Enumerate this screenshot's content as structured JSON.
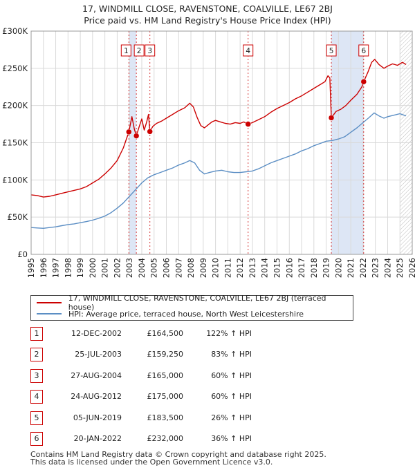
{
  "title_line1": "17, WINDMILL CLOSE, RAVENSTONE, COALVILLE, LE67 2BJ",
  "title_line2": "Price paid vs. HM Land Registry's House Price Index (HPI)",
  "colors": {
    "property": "#cc0000",
    "hpi": "#5b8ec4",
    "shade": "#dde6f5",
    "grid": "#d9d9d9"
  },
  "chart_data": {
    "type": "line",
    "xlim": [
      1995,
      2026
    ],
    "ylim": [
      0,
      300000
    ],
    "y_ticks": [
      0,
      50000,
      100000,
      150000,
      200000,
      250000,
      300000
    ],
    "y_tick_labels": [
      "£0",
      "£50K",
      "£100K",
      "£150K",
      "£200K",
      "£250K",
      "£300K"
    ],
    "x_ticks": [
      "1995",
      "1996",
      "1997",
      "1998",
      "1999",
      "2000",
      "2001",
      "2002",
      "2003",
      "2004",
      "2005",
      "2006",
      "2007",
      "2008",
      "2009",
      "2010",
      "2011",
      "2012",
      "2013",
      "2014",
      "2015",
      "2016",
      "2017",
      "2018",
      "2019",
      "2020",
      "2021",
      "2022",
      "2023",
      "2024",
      "2025",
      "2026"
    ],
    "grid": true,
    "series": [
      {
        "name": "17, WINDMILL CLOSE, RAVENSTONE, COALVILLE, LE67 2BJ (terraced house)",
        "color": "#cc0000",
        "points": [
          [
            1995.0,
            80000
          ],
          [
            1995.5,
            79000
          ],
          [
            1996.0,
            77000
          ],
          [
            1996.5,
            78000
          ],
          [
            1997.0,
            80000
          ],
          [
            1997.5,
            82000
          ],
          [
            1998.0,
            84000
          ],
          [
            1998.5,
            86000
          ],
          [
            1999.0,
            88000
          ],
          [
            1999.5,
            91000
          ],
          [
            2000.0,
            96000
          ],
          [
            2000.5,
            101000
          ],
          [
            2001.0,
            108000
          ],
          [
            2001.5,
            116000
          ],
          [
            2002.0,
            126000
          ],
          [
            2002.5,
            143000
          ],
          [
            2002.95,
            164500
          ],
          [
            2003.2,
            185000
          ],
          [
            2003.4,
            168000
          ],
          [
            2003.56,
            159250
          ],
          [
            2003.8,
            172000
          ],
          [
            2004.0,
            182000
          ],
          [
            2004.2,
            167000
          ],
          [
            2004.4,
            178000
          ],
          [
            2004.55,
            188000
          ],
          [
            2004.66,
            165000
          ],
          [
            2004.9,
            172000
          ],
          [
            2005.2,
            176000
          ],
          [
            2005.6,
            179000
          ],
          [
            2006.0,
            183000
          ],
          [
            2006.5,
            188000
          ],
          [
            2007.0,
            193000
          ],
          [
            2007.5,
            197000
          ],
          [
            2007.9,
            203000
          ],
          [
            2008.2,
            198000
          ],
          [
            2008.5,
            184000
          ],
          [
            2008.8,
            173000
          ],
          [
            2009.1,
            170000
          ],
          [
            2009.4,
            174000
          ],
          [
            2009.7,
            178000
          ],
          [
            2010.0,
            180000
          ],
          [
            2010.4,
            178000
          ],
          [
            2010.8,
            176000
          ],
          [
            2011.2,
            175000
          ],
          [
            2011.6,
            177000
          ],
          [
            2012.0,
            176000
          ],
          [
            2012.3,
            178000
          ],
          [
            2012.65,
            175000
          ],
          [
            2013.0,
            177000
          ],
          [
            2013.5,
            181000
          ],
          [
            2014.0,
            185000
          ],
          [
            2014.5,
            191000
          ],
          [
            2015.0,
            196000
          ],
          [
            2015.5,
            200000
          ],
          [
            2016.0,
            204000
          ],
          [
            2016.5,
            209000
          ],
          [
            2017.0,
            213000
          ],
          [
            2017.5,
            218000
          ],
          [
            2018.0,
            223000
          ],
          [
            2018.5,
            228000
          ],
          [
            2018.9,
            232000
          ],
          [
            2019.15,
            240000
          ],
          [
            2019.3,
            237000
          ],
          [
            2019.42,
            183500
          ],
          [
            2019.8,
            192000
          ],
          [
            2020.2,
            195000
          ],
          [
            2020.6,
            200000
          ],
          [
            2021.0,
            207000
          ],
          [
            2021.5,
            215000
          ],
          [
            2021.9,
            225000
          ],
          [
            2022.05,
            232000
          ],
          [
            2022.4,
            245000
          ],
          [
            2022.7,
            258000
          ],
          [
            2022.95,
            262000
          ],
          [
            2023.3,
            255000
          ],
          [
            2023.7,
            250000
          ],
          [
            2024.0,
            253000
          ],
          [
            2024.4,
            256000
          ],
          [
            2024.8,
            254000
          ],
          [
            2025.2,
            258000
          ],
          [
            2025.5,
            255000
          ]
        ]
      },
      {
        "name": "HPI: Average price, terraced house, North West Leicestershire",
        "color": "#5b8ec4",
        "points": [
          [
            1995.0,
            36000
          ],
          [
            1995.5,
            35500
          ],
          [
            1996.0,
            35000
          ],
          [
            1996.5,
            36000
          ],
          [
            1997.0,
            37000
          ],
          [
            1997.5,
            38500
          ],
          [
            1998.0,
            40000
          ],
          [
            1998.5,
            41000
          ],
          [
            1999.0,
            42500
          ],
          [
            1999.5,
            44000
          ],
          [
            2000.0,
            46000
          ],
          [
            2000.5,
            48500
          ],
          [
            2001.0,
            51500
          ],
          [
            2001.5,
            56000
          ],
          [
            2002.0,
            62000
          ],
          [
            2002.5,
            69000
          ],
          [
            2003.0,
            78000
          ],
          [
            2003.5,
            87000
          ],
          [
            2004.0,
            96000
          ],
          [
            2004.5,
            103000
          ],
          [
            2005.0,
            107000
          ],
          [
            2005.5,
            110000
          ],
          [
            2006.0,
            113000
          ],
          [
            2006.5,
            116000
          ],
          [
            2007.0,
            120000
          ],
          [
            2007.5,
            123000
          ],
          [
            2007.9,
            126000
          ],
          [
            2008.3,
            123000
          ],
          [
            2008.7,
            113000
          ],
          [
            2009.1,
            108000
          ],
          [
            2009.5,
            110000
          ],
          [
            2010.0,
            112000
          ],
          [
            2010.5,
            113000
          ],
          [
            2011.0,
            111000
          ],
          [
            2011.5,
            110000
          ],
          [
            2012.0,
            110000
          ],
          [
            2012.5,
            111000
          ],
          [
            2013.0,
            112000
          ],
          [
            2013.5,
            115000
          ],
          [
            2014.0,
            119000
          ],
          [
            2014.5,
            123000
          ],
          [
            2015.0,
            126000
          ],
          [
            2015.5,
            129000
          ],
          [
            2016.0,
            132000
          ],
          [
            2016.5,
            135000
          ],
          [
            2017.0,
            139000
          ],
          [
            2017.5,
            142000
          ],
          [
            2018.0,
            146000
          ],
          [
            2018.5,
            149000
          ],
          [
            2019.0,
            152000
          ],
          [
            2019.5,
            153000
          ],
          [
            2020.0,
            155000
          ],
          [
            2020.5,
            158000
          ],
          [
            2021.0,
            164000
          ],
          [
            2021.5,
            170000
          ],
          [
            2022.0,
            177000
          ],
          [
            2022.5,
            184000
          ],
          [
            2022.9,
            190000
          ],
          [
            2023.3,
            186000
          ],
          [
            2023.7,
            183000
          ],
          [
            2024.0,
            185000
          ],
          [
            2024.5,
            187000
          ],
          [
            2025.0,
            189000
          ],
          [
            2025.5,
            186000
          ]
        ]
      }
    ],
    "sales": [
      {
        "label": "1",
        "x": 2002.95,
        "y": 164500
      },
      {
        "label": "2",
        "x": 2003.56,
        "y": 159250
      },
      {
        "label": "3",
        "x": 2004.66,
        "y": 165000
      },
      {
        "label": "4",
        "x": 2012.65,
        "y": 175000
      },
      {
        "label": "5",
        "x": 2019.42,
        "y": 183500
      },
      {
        "label": "6",
        "x": 2022.05,
        "y": 232000
      }
    ],
    "shaded_periods": [
      [
        2002.95,
        2003.56
      ],
      [
        2019.42,
        2022.05
      ]
    ],
    "hatched_from": 2025.0
  },
  "legend": {
    "property": "17, WINDMILL CLOSE, RAVENSTONE, COALVILLE, LE67 2BJ (terraced house)",
    "hpi": "HPI: Average price, terraced house, North West Leicestershire"
  },
  "sales_table": [
    {
      "num": "1",
      "date": "12-DEC-2002",
      "price": "£164,500",
      "hpi": "122% ↑ HPI"
    },
    {
      "num": "2",
      "date": "25-JUL-2003",
      "price": "£159,250",
      "hpi": "83% ↑ HPI"
    },
    {
      "num": "3",
      "date": "27-AUG-2004",
      "price": "£165,000",
      "hpi": "60% ↑ HPI"
    },
    {
      "num": "4",
      "date": "24-AUG-2012",
      "price": "£175,000",
      "hpi": "60% ↑ HPI"
    },
    {
      "num": "5",
      "date": "05-JUN-2019",
      "price": "£183,500",
      "hpi": "26% ↑ HPI"
    },
    {
      "num": "6",
      "date": "20-JAN-2022",
      "price": "£232,000",
      "hpi": "36% ↑ HPI"
    }
  ],
  "footer_line1": "Contains HM Land Registry data © Crown copyright and database right 2025.",
  "footer_line2": "This data is licensed under the Open Government Licence v3.0."
}
